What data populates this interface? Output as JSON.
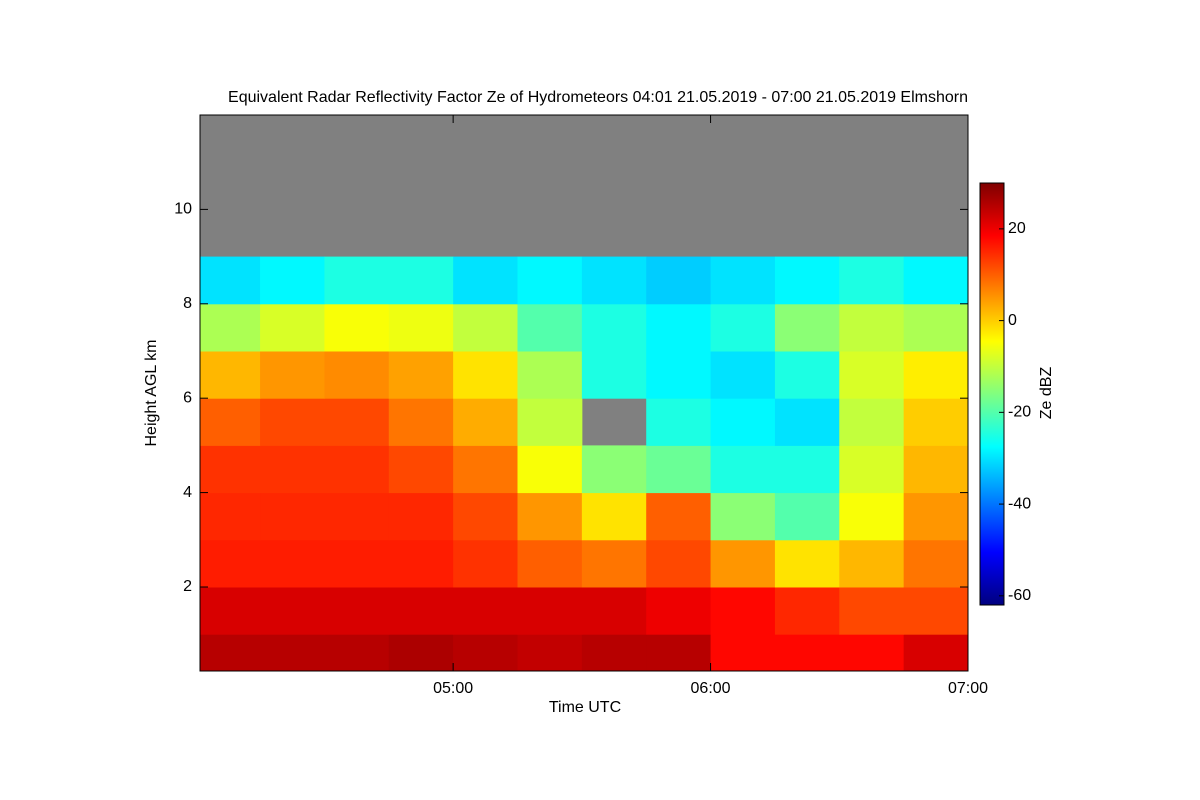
{
  "chart_data": {
    "type": "heatmap",
    "title": "Equivalent Radar Reflectivity Factor Ze of Hydrometeors   04:01 21.05.2019 - 07:00 21.05.2019 Elmshorn",
    "xlabel": "Time UTC",
    "ylabel": "Height AGL km",
    "colorbar_label": "Ze dBZ",
    "xlim": [
      241,
      420
    ],
    "xticks": [
      {
        "value": 300,
        "label": "05:00"
      },
      {
        "value": 360,
        "label": "06:00"
      },
      {
        "value": 420,
        "label": "07:00"
      }
    ],
    "ylim": [
      0.22,
      12
    ],
    "yticks": [
      2,
      4,
      6,
      8,
      10
    ],
    "clim": [
      -62,
      30
    ],
    "cticks": [
      -60,
      -40,
      -20,
      0,
      20
    ],
    "colormap": [
      "#00007f",
      "#0000ff",
      "#0080ff",
      "#00ffff",
      "#80ff80",
      "#ffff00",
      "#ff8000",
      "#ff0000",
      "#7f0000"
    ],
    "nodata_color": "#808080",
    "x_bins": [
      241,
      255,
      270,
      285,
      300,
      315,
      330,
      345,
      360,
      375,
      390,
      405,
      420
    ],
    "y_bins": [
      0.22,
      1,
      2,
      3,
      4,
      5,
      6,
      7,
      8,
      9,
      10,
      11,
      12
    ],
    "z": [
      [
        25,
        25,
        25,
        26,
        25,
        24,
        25,
        25,
        18,
        18,
        18,
        22
      ],
      [
        22,
        22,
        22,
        22,
        22,
        22,
        22,
        20,
        18,
        15,
        12,
        12
      ],
      [
        16,
        16,
        16,
        16,
        14,
        10,
        8,
        12,
        5,
        -2,
        2,
        8
      ],
      [
        15,
        15,
        15,
        15,
        12,
        5,
        -2,
        10,
        -15,
        -20,
        -5,
        5
      ],
      [
        14,
        14,
        14,
        12,
        8,
        -5,
        -15,
        -18,
        -25,
        -25,
        -8,
        2
      ],
      [
        10,
        12,
        12,
        8,
        3,
        -10,
        null,
        -25,
        -28,
        -30,
        -10,
        0
      ],
      [
        2,
        5,
        6,
        4,
        -2,
        -12,
        -25,
        -28,
        -30,
        -25,
        -8,
        -3
      ],
      [
        -12,
        -8,
        -5,
        -6,
        -10,
        -20,
        -25,
        -28,
        -25,
        -15,
        -10,
        -12
      ],
      [
        -30,
        -28,
        -25,
        -25,
        -30,
        -28,
        -30,
        -32,
        -30,
        -28,
        -25,
        -28
      ],
      [
        null,
        null,
        null,
        null,
        null,
        null,
        null,
        null,
        null,
        null,
        null,
        null
      ],
      [
        null,
        null,
        null,
        null,
        null,
        null,
        null,
        null,
        null,
        null,
        null,
        null
      ],
      [
        null,
        null,
        null,
        null,
        null,
        null,
        null,
        null,
        null,
        null,
        null,
        null
      ]
    ]
  }
}
